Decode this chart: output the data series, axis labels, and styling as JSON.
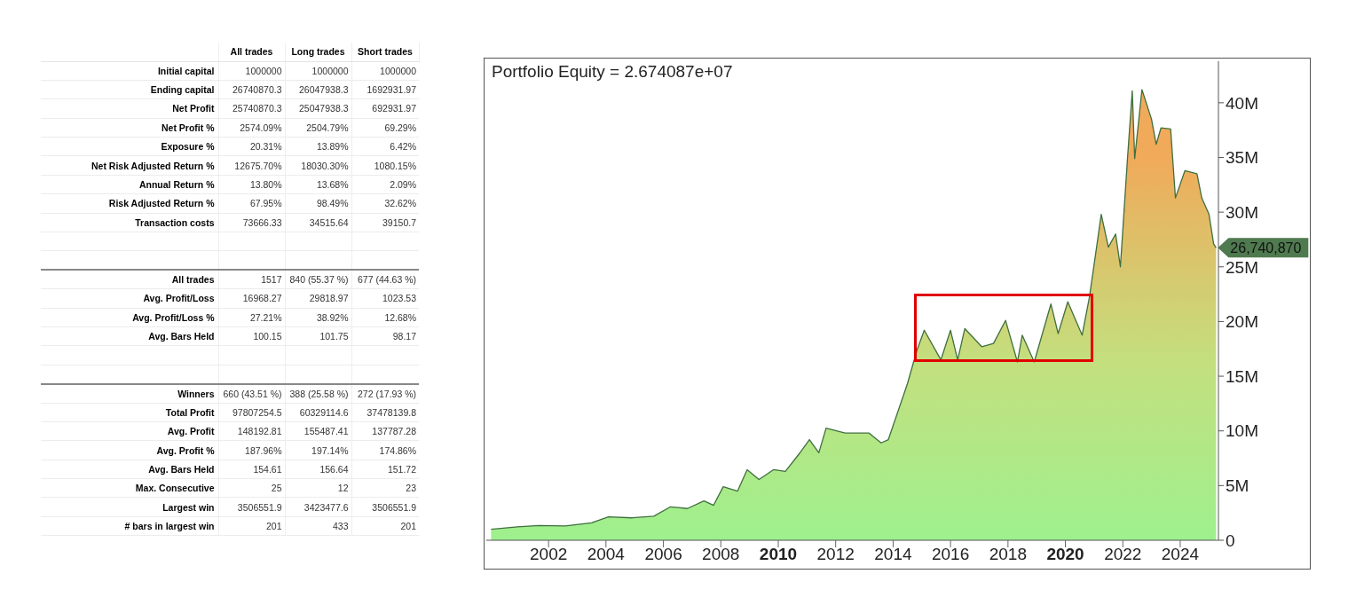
{
  "chart_data": [
    {
      "type": "other",
      "categories": [
        null,
        "All trades",
        "Long trades",
        "Short trades"
      ],
      "y_categories": [
        "Initial capital",
        "Ending capital",
        "Net Profit",
        "Net Profit %",
        "Exposure %",
        "Net Risk Adjusted Return %",
        "Annual Return %",
        "Risk Adjusted Return %",
        "Transaction costs",
        null,
        null,
        "All trades",
        "Avg. Profit/Loss",
        "Avg. Profit/Loss %",
        "Avg. Bars Held",
        null,
        null,
        "Winners",
        "Total Profit",
        "Avg. Profit",
        "Avg. Profit %",
        "Avg. Bars Held",
        "Max. Consecutive",
        "Largest win",
        "# bars in largest win"
      ],
      "cell_labels": [
        [
          "1000000",
          "1000000",
          "1000000"
        ],
        [
          "26740870.3",
          "26047938.3",
          "1692931.97"
        ],
        [
          "25740870.3",
          "25047938.3",
          "692931.97"
        ],
        [
          "2574.09%",
          "2504.79%",
          "69.29%"
        ],
        [
          "20.31%",
          "13.89%",
          "6.42%"
        ],
        [
          "12675.70%",
          "18030.30%",
          "1080.15%"
        ],
        [
          "13.80%",
          "13.68%",
          "2.09%"
        ],
        [
          "67.95%",
          "98.49%",
          "32.62%"
        ],
        [
          "73666.33",
          "34515.64",
          "39150.7"
        ],
        [
          null,
          null,
          null
        ],
        [
          null,
          null,
          null
        ],
        [
          "1517",
          "840 (55.37 %)",
          "677 (44.63 %)"
        ],
        [
          "16968.27",
          "29818.97",
          "1023.53"
        ],
        [
          "27.21%",
          "38.92%",
          "12.68%"
        ],
        [
          "100.15",
          "101.75",
          "98.17"
        ],
        [
          null,
          null,
          null
        ],
        [
          null,
          null,
          null
        ],
        [
          "660 (43.51 %)",
          "388 (25.58 %)",
          "272 (17.93 %)"
        ],
        [
          "97807254.5",
          "60329114.6",
          "37478139.8"
        ],
        [
          "148192.81",
          "155487.41",
          "137787.28"
        ],
        [
          "187.96%",
          "197.14%",
          "174.86%"
        ],
        [
          "154.61",
          "156.64",
          "151.72"
        ],
        [
          "25",
          "12",
          "23"
        ],
        [
          "3506551.9",
          "3423477.6",
          "3506551.9"
        ],
        [
          "201",
          "433",
          "201"
        ]
      ]
    },
    {
      "type": "area",
      "title": "Portfolio Equity = 2.674087e+07",
      "x": [
        "2000-01",
        "2000-12",
        "2001-09",
        "2002-08",
        "2003-07",
        "2004-02",
        "2004-12",
        "2005-09",
        "2006-04",
        "2006-11",
        "2007-06",
        "2007-10",
        "2008-02",
        "2008-08",
        "2008-12",
        "2009-05",
        "2009-11",
        "2010-04",
        "2010-10",
        "2011-02",
        "2011-06",
        "2011-09",
        "2012-05",
        "2013-03",
        "2013-08",
        "2013-11",
        "2014-07",
        "2014-11",
        "2015-02",
        "2015-09",
        "2016-01",
        "2016-04",
        "2016-07",
        "2017-02",
        "2017-07",
        "2017-12",
        "2018-05",
        "2018-07",
        "2018-12",
        "2019-07",
        "2019-10",
        "2020-02",
        "2020-08",
        "2020-11",
        "2021-02",
        "2021-04",
        "2021-07",
        "2021-10",
        "2021-12",
        "2022-03",
        "2022-05",
        "2022-06",
        "2022-09",
        "2023-01",
        "2023-03",
        "2023-05",
        "2023-09",
        "2023-11",
        "2024-03",
        "2024-08",
        "2024-10",
        "2025-01",
        "2025-03",
        "2025-04"
      ],
      "series": [
        {
          "color": "#9ef08e",
          "values": [
            1000000,
            1230000,
            1350000,
            1300000,
            1600000,
            2140000,
            2050000,
            2200000,
            3060000,
            2900000,
            3600000,
            3200000,
            4900000,
            4500000,
            6450000,
            5550000,
            6450000,
            6300000,
            7970000,
            9200000,
            8000000,
            10250000,
            9800000,
            9800000,
            8900000,
            9200000,
            14300000,
            17400000,
            19200000,
            16500000,
            19200000,
            16500000,
            19350000,
            17700000,
            18000000,
            20100000,
            16300000,
            18750000,
            16300000,
            21600000,
            18900000,
            21800000,
            18750000,
            22200000,
            26800000,
            29800000,
            26800000,
            28000000,
            25000000,
            34900000,
            41100000,
            34900000,
            41200000,
            38500000,
            36200000,
            37700000,
            37600000,
            31300000,
            33800000,
            33500000,
            31300000,
            29800000,
            27100000,
            26740870
          ]
        }
      ],
      "xlim": [
        "1999-11",
        "2025-05"
      ],
      "xticks": [
        "2002",
        "2004",
        "2006",
        "2008",
        "2010",
        "2012",
        "2014",
        "2016",
        "2018",
        "2020",
        "2022",
        "2024"
      ],
      "ylim": [
        0,
        43800000
      ],
      "yticks": [
        0,
        {
          "value": 5000000,
          "label": "5M"
        },
        {
          "value": 10000000,
          "label": "10M"
        },
        {
          "value": 15000000,
          "label": "15M"
        },
        {
          "value": 20000000,
          "label": "20M"
        },
        {
          "value": 25000000,
          "label": "25M"
        },
        {
          "value": 30000000,
          "label": "30M"
        },
        {
          "value": 35000000,
          "label": "35M"
        },
        {
          "value": 40000000,
          "label": "40M"
        }
      ],
      "annotations": [
        {
          "text": "26,740,870",
          "x": "2025-04",
          "y": 26740870
        }
      ]
    }
  ]
}
